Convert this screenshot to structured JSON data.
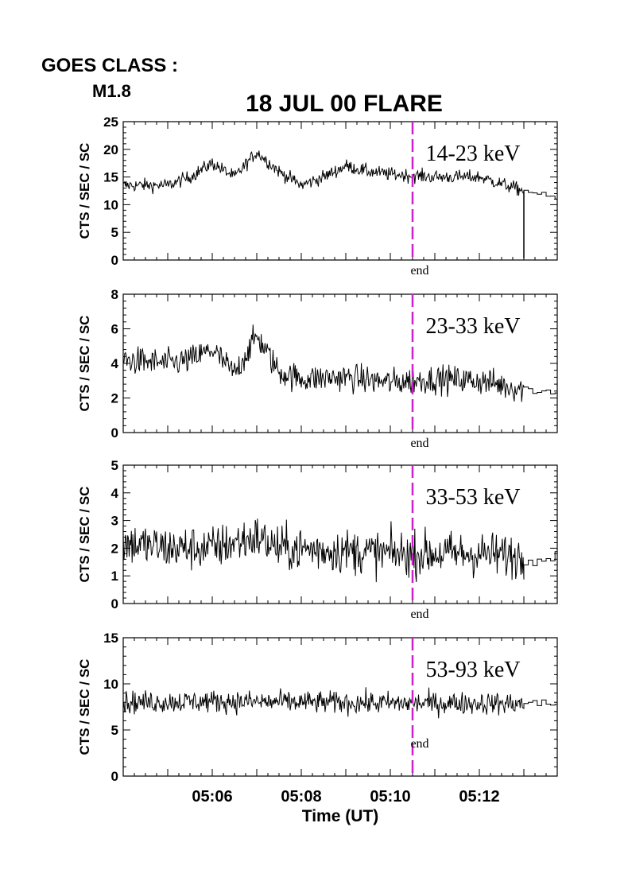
{
  "header": {
    "goes_label": "GOES CLASS :",
    "goes_class": "M1.8",
    "title": "18 JUL 00 FLARE"
  },
  "colors": {
    "axis": "#000000",
    "data_line": "#000000",
    "end_marker": "#cc22cc"
  },
  "chart_data": [
    {
      "type": "line",
      "band_label": "14-23 keV",
      "ylabel": "CTS / SEC / SC",
      "ylim": [
        0,
        25
      ],
      "yticks": [
        "0",
        "5",
        "10",
        "15",
        "20",
        "25"
      ],
      "xlim": [
        "05:04:00",
        "05:13:45"
      ],
      "end_marker": {
        "time": "05:10:30",
        "label": "end"
      },
      "profile": [
        {
          "t": "05:04:00",
          "y": 13.5
        },
        {
          "t": "05:05:00",
          "y": 13.5
        },
        {
          "t": "05:05:30",
          "y": 15
        },
        {
          "t": "05:06:00",
          "y": 17.5
        },
        {
          "t": "05:06:30",
          "y": 15
        },
        {
          "t": "05:07:00",
          "y": 19.5
        },
        {
          "t": "05:07:30",
          "y": 16
        },
        {
          "t": "05:08:00",
          "y": 13.5
        },
        {
          "t": "05:08:30",
          "y": 15
        },
        {
          "t": "05:09:00",
          "y": 17
        },
        {
          "t": "05:09:30",
          "y": 16
        },
        {
          "t": "05:10:00",
          "y": 15.5
        },
        {
          "t": "05:11:00",
          "y": 15
        },
        {
          "t": "05:12:00",
          "y": 15
        },
        {
          "t": "05:13:00",
          "y": 12.5
        },
        {
          "t": "05:13:45",
          "y": 11
        }
      ],
      "noise_amplitude": 0.6,
      "spike": {
        "t": "05:13:00",
        "from": 12.5,
        "to": 0.3
      }
    },
    {
      "type": "line",
      "band_label": "23-33 keV",
      "ylabel": "CTS / SEC / SC",
      "ylim": [
        0,
        8
      ],
      "yticks": [
        "0",
        "2",
        "4",
        "6",
        "8"
      ],
      "xlim": [
        "05:04:00",
        "05:13:45"
      ],
      "end_marker": {
        "time": "05:10:30",
        "label": "end"
      },
      "profile": [
        {
          "t": "05:04:00",
          "y": 4.2
        },
        {
          "t": "05:05:00",
          "y": 4.0
        },
        {
          "t": "05:05:30",
          "y": 4.2
        },
        {
          "t": "05:06:00",
          "y": 4.8
        },
        {
          "t": "05:06:30",
          "y": 3.4
        },
        {
          "t": "05:07:00",
          "y": 5.6
        },
        {
          "t": "05:07:30",
          "y": 3.5
        },
        {
          "t": "05:08:00",
          "y": 3.1
        },
        {
          "t": "05:09:00",
          "y": 3.2
        },
        {
          "t": "05:10:00",
          "y": 2.9
        },
        {
          "t": "05:11:00",
          "y": 3.1
        },
        {
          "t": "05:12:00",
          "y": 3.0
        },
        {
          "t": "05:13:00",
          "y": 2.5
        },
        {
          "t": "05:13:45",
          "y": 2.4
        }
      ],
      "noise_amplitude": 0.4
    },
    {
      "type": "line",
      "band_label": "33-53 keV",
      "ylabel": "CTS / SEC / SC",
      "ylim": [
        0,
        5
      ],
      "yticks": [
        "0",
        "1",
        "2",
        "3",
        "4",
        "5"
      ],
      "xlim": [
        "05:04:00",
        "05:13:45"
      ],
      "end_marker": {
        "time": "05:10:30",
        "label": "end"
      },
      "profile": [
        {
          "t": "05:04:00",
          "y": 2.2
        },
        {
          "t": "05:05:00",
          "y": 2.0
        },
        {
          "t": "05:06:00",
          "y": 2.0
        },
        {
          "t": "05:07:00",
          "y": 2.4
        },
        {
          "t": "05:07:30",
          "y": 2.0
        },
        {
          "t": "05:09:00",
          "y": 1.9
        },
        {
          "t": "05:10:00",
          "y": 1.8
        },
        {
          "t": "05:11:00",
          "y": 1.8
        },
        {
          "t": "05:12:00",
          "y": 1.8
        },
        {
          "t": "05:13:00",
          "y": 1.7
        },
        {
          "t": "05:13:45",
          "y": 1.7
        }
      ],
      "noise_amplitude": 0.4
    },
    {
      "type": "line",
      "band_label": "53-93 keV",
      "ylabel": "CTS / SEC / SC",
      "ylim": [
        0,
        15
      ],
      "yticks": [
        "0",
        "5",
        "10",
        "15"
      ],
      "xlim": [
        "05:04:00",
        "05:13:45"
      ],
      "xticks": [
        "05:06",
        "05:08",
        "05:10",
        "05:12"
      ],
      "xlabel": "Time (UT)",
      "end_marker": {
        "time": "05:10:30",
        "label": "end"
      },
      "profile": [
        {
          "t": "05:04:00",
          "y": 8.0
        },
        {
          "t": "05:06:00",
          "y": 8.1
        },
        {
          "t": "05:08:00",
          "y": 8.0
        },
        {
          "t": "05:10:00",
          "y": 7.9
        },
        {
          "t": "05:12:00",
          "y": 7.9
        },
        {
          "t": "05:13:45",
          "y": 7.8
        }
      ],
      "noise_amplitude": 0.6
    }
  ]
}
